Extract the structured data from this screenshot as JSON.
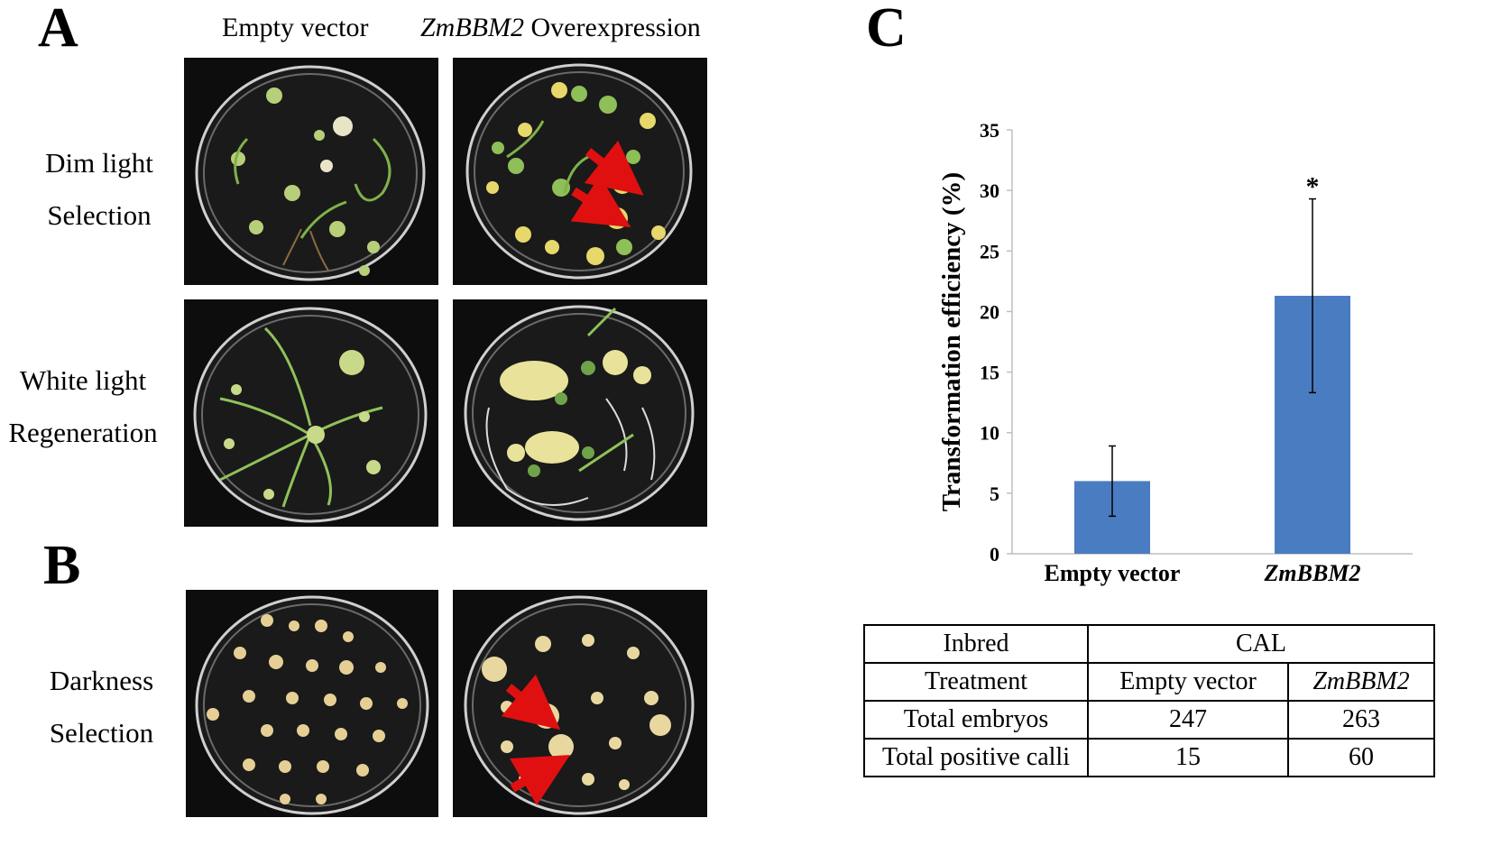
{
  "panel_a": {
    "letter": "A",
    "col_empty": "Empty vector",
    "col_gene": "ZmBBM2",
    "col_over": " Overexpression",
    "row1_line1": "Dim light",
    "row1_line2": "Selection",
    "row2_line1": "White light",
    "row2_line2": "Regeneration"
  },
  "panel_b": {
    "letter": "B",
    "row_line1": "Darkness",
    "row_line2": "Selection"
  },
  "panel_c": {
    "letter": "C"
  },
  "chart_data": {
    "type": "bar",
    "categories": [
      "Empty vector",
      "ZmBBM2"
    ],
    "values": [
      6,
      21.3
    ],
    "errors": [
      2.9,
      8.0
    ],
    "significance": [
      "",
      "*"
    ],
    "ylabel": "Transformation efficiency (%)",
    "ylim": [
      0,
      35
    ],
    "yticks": [
      0,
      5,
      10,
      15,
      20,
      25,
      30,
      35
    ],
    "bar_color": "#4a7cc1",
    "grid": false
  },
  "table": {
    "r1": [
      "Inbred",
      "CAL"
    ],
    "r2": [
      "Treatment",
      "Empty vector",
      "ZmBBM2"
    ],
    "r3": [
      "Total embryos",
      "247",
      "263"
    ],
    "r4": [
      "Total positive calli",
      "15",
      "60"
    ]
  },
  "colors": {
    "arrow": "#e01010",
    "photo_bg": "#0d0d0d"
  }
}
